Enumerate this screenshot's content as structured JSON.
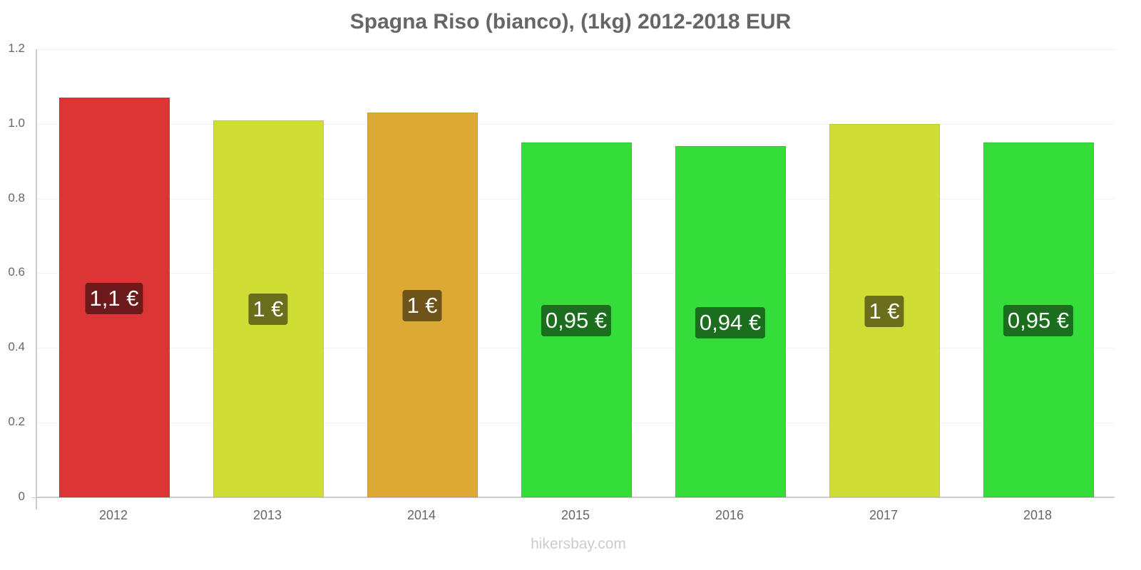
{
  "chart_data": {
    "type": "bar",
    "title": "Spagna Riso (bianco), (1kg) 2012-2018 EUR",
    "xlabel": "",
    "ylabel": "",
    "ylim": [
      0,
      1.2
    ],
    "yticks": [
      "0",
      "0.2",
      "0.4",
      "0.6",
      "0.8",
      "1.0",
      "1.2"
    ],
    "categories": [
      "2012",
      "2013",
      "2014",
      "2015",
      "2016",
      "2017",
      "2018"
    ],
    "values": [
      1.07,
      1.01,
      1.03,
      0.95,
      0.94,
      1.0,
      0.95
    ],
    "data_labels": [
      "1,1 €",
      "1 €",
      "1 €",
      "0,95 €",
      "0,94 €",
      "1 €",
      "0,95 €"
    ],
    "bar_colors": [
      "#dc3535",
      "#cfdd35",
      "#dca935",
      "#35dd3a",
      "#35dd3a",
      "#cfdd35",
      "#35dd3a"
    ],
    "label_bg_colors": [
      "#6e1a1a",
      "#6a6e1a",
      "#6e541a",
      "#1b6e1d",
      "#1b6e1d",
      "#6a6e1a",
      "#1b6e1d"
    ],
    "grid": true,
    "legend": "none"
  },
  "watermark": "hikersbay.com"
}
